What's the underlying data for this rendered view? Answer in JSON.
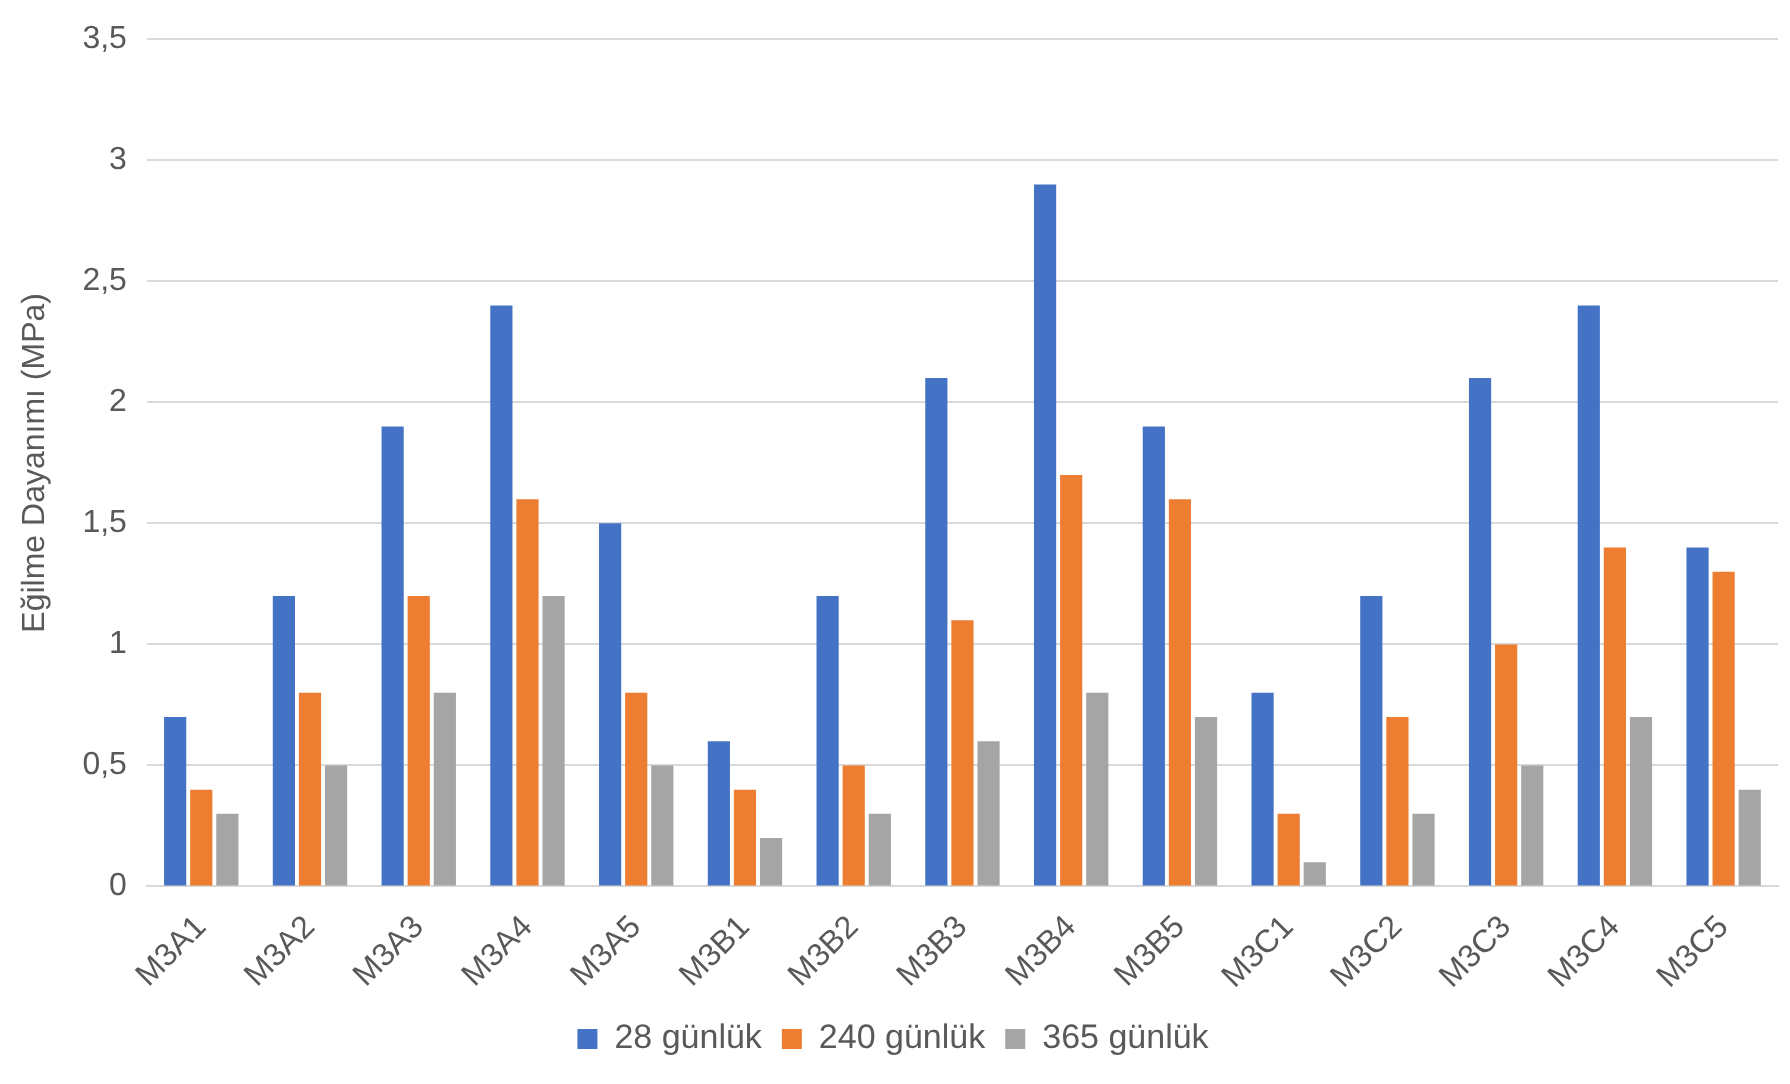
{
  "chart_data": {
    "type": "bar",
    "ylabel": "Eğilme Dayanımı (MPa)",
    "categories": [
      "M3A1",
      "M3A2",
      "M3A3",
      "M3A4",
      "M3A5",
      "M3B1",
      "M3B2",
      "M3B3",
      "M3B4",
      "M3B5",
      "M3C1",
      "M3C2",
      "M3C3",
      "M3C4",
      "M3C5"
    ],
    "series": [
      {
        "name": "28 günlük",
        "color": "#4472c4",
        "values": [
          0.7,
          1.2,
          1.9,
          2.4,
          1.5,
          0.6,
          1.2,
          2.1,
          2.9,
          1.9,
          0.8,
          1.2,
          2.1,
          2.4,
          1.4
        ]
      },
      {
        "name": "240 günlük",
        "color": "#ed7d31",
        "values": [
          0.4,
          0.8,
          1.2,
          1.6,
          0.8,
          0.4,
          0.5,
          1.1,
          1.7,
          1.6,
          0.3,
          0.7,
          1.0,
          1.4,
          1.3
        ]
      },
      {
        "name": "365 günlük",
        "color": "#a5a5a5",
        "values": [
          0.3,
          0.5,
          0.8,
          1.2,
          0.5,
          0.2,
          0.3,
          0.6,
          0.8,
          0.7,
          0.1,
          0.3,
          0.5,
          0.7,
          0.4
        ]
      }
    ],
    "ylim": [
      0,
      3.5
    ],
    "yticks": [
      0,
      {
        "value": 0.5,
        "label": "0,5"
      },
      1,
      {
        "value": 1.5,
        "label": "1,5"
      },
      2,
      {
        "value": 2.5,
        "label": "2,5"
      },
      3,
      {
        "value": 3.5,
        "label": "3,5"
      }
    ],
    "grid": "y",
    "legend": "bottom"
  }
}
